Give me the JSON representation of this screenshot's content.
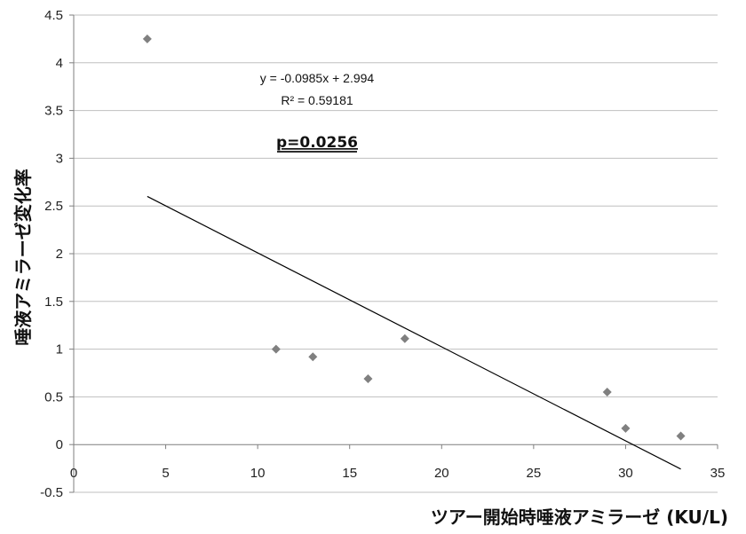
{
  "chart_data": {
    "type": "scatter",
    "title": "",
    "xlabel": "ツアー開始時唾液アミラーゼ (KU/L)",
    "ylabel": "唾液アミラーゼ変化率",
    "xlim": [
      0,
      35
    ],
    "ylim": [
      -0.5,
      4.5
    ],
    "xticks": [
      0,
      5,
      10,
      15,
      20,
      25,
      30,
      35
    ],
    "yticks": [
      -0.5,
      0,
      0.5,
      1,
      1.5,
      2,
      2.5,
      3,
      3.5,
      4,
      4.5
    ],
    "xtick_labels": [
      "0",
      "5",
      "10",
      "15",
      "20",
      "25",
      "30",
      "35"
    ],
    "ytick_labels": [
      "-0.5",
      "0",
      "0.5",
      "1",
      "1.5",
      "2",
      "2.5",
      "3",
      "3.5",
      "4",
      "4.5"
    ],
    "grid": "horizontal",
    "points": [
      {
        "x": 4,
        "y": 4.25
      },
      {
        "x": 11,
        "y": 1.0
      },
      {
        "x": 13,
        "y": 0.92
      },
      {
        "x": 16,
        "y": 0.69
      },
      {
        "x": 18,
        "y": 1.11
      },
      {
        "x": 29,
        "y": 0.55
      },
      {
        "x": 30,
        "y": 0.17
      },
      {
        "x": 33,
        "y": 0.09
      }
    ],
    "trendline": {
      "slope": -0.0985,
      "intercept": 2.994,
      "x_start": 4,
      "x_end": 33
    },
    "annotations": {
      "equation": "y = -0.0985x + 2.994",
      "r_squared": "R² = 0.59181",
      "p_value": "p=0.0256"
    },
    "colors": {
      "marker": "#808080",
      "grid": "#bfbfbf",
      "trendline": "#000000"
    }
  }
}
